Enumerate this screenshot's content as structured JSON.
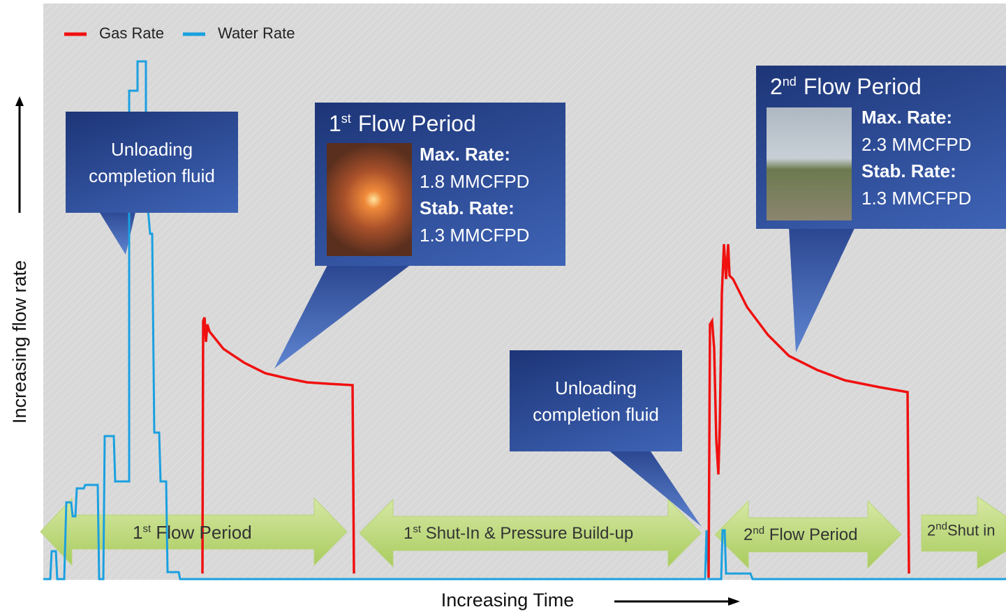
{
  "legend": {
    "gas": "Gas Rate",
    "water": "Water Rate"
  },
  "axes": {
    "y_label": "Increasing flow rate",
    "x_label": "Increasing Time"
  },
  "callouts": [
    {
      "text": "Unloading completion fluid"
    },
    {
      "title": {
        "num": "1",
        "sup": "st",
        "text": "Flow Period"
      },
      "lines": [
        "Max. Rate:",
        "1.8 MMCFPD",
        "Stab. Rate:",
        "1.3 MMCFPD"
      ]
    },
    {
      "text": "Unloading completion fluid"
    },
    {
      "title": {
        "num": "2",
        "sup": "nd",
        "text": "Flow Period"
      },
      "lines": [
        "Max. Rate:",
        "2.3 MMCFPD",
        "Stab. Rate:",
        "1.3 MMCFPD"
      ]
    }
  ],
  "periods": [
    {
      "num": "1",
      "sup": "st",
      "text": "Flow Period"
    },
    {
      "num": "1",
      "sup": "st",
      "text": "Shut-In & Pressure Build-up"
    },
    {
      "num": "2",
      "sup": "nd",
      "text": "Flow Period"
    },
    {
      "num": "2",
      "sup": "nd",
      "text": "Shut in"
    }
  ]
}
